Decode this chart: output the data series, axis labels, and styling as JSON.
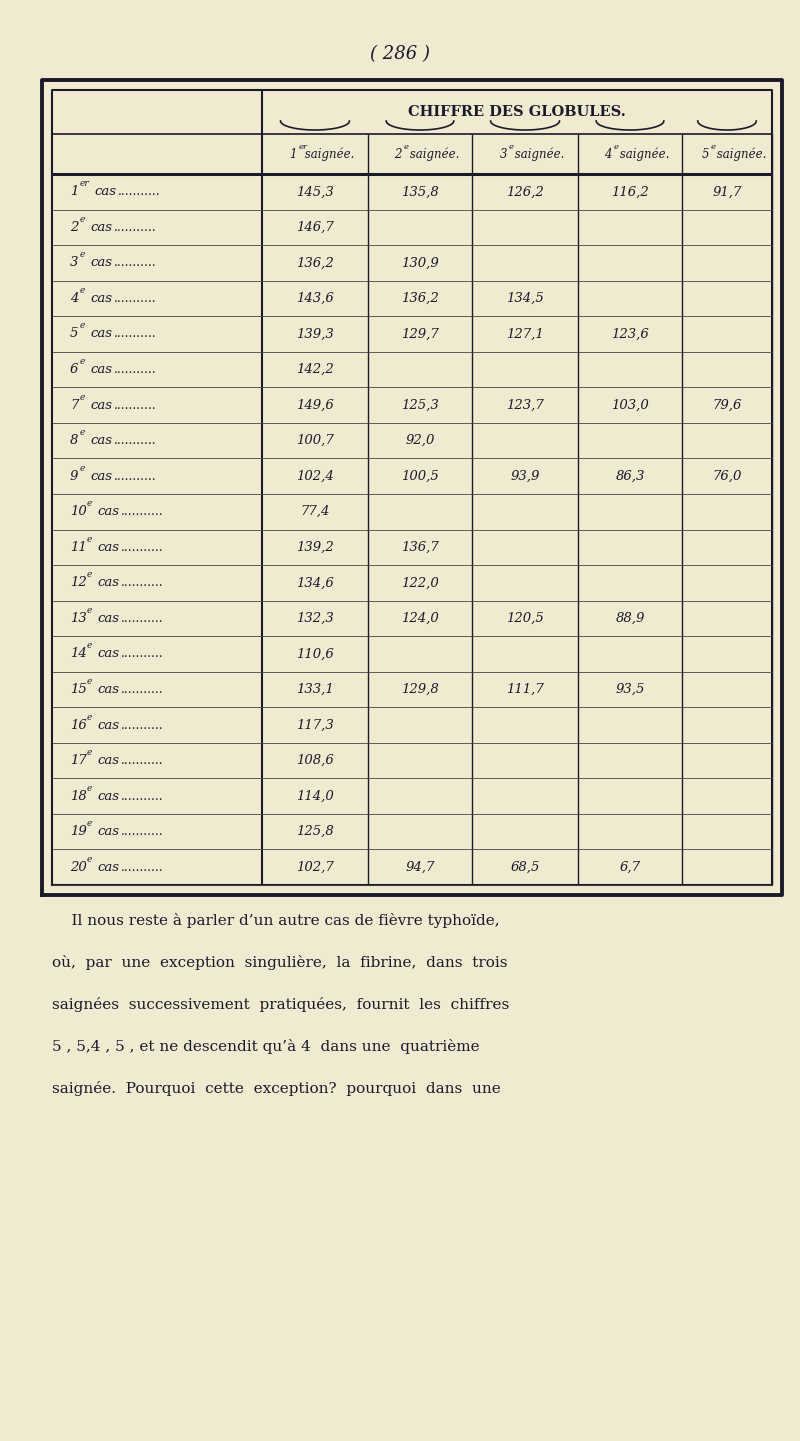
{
  "page_number": "( 286 )",
  "table_title": "CHIFFRE DES GLOBULES.",
  "col_headers_raw": [
    "1",
    "er",
    "2",
    "e",
    "3",
    "e",
    "4",
    "e",
    "5",
    "e"
  ],
  "col_headers_text": [
    "saignée.",
    "saignée.",
    "saignée.",
    "saignée.",
    "saignée."
  ],
  "col_headers_num": [
    "1",
    "2",
    "3",
    "4",
    "5"
  ],
  "col_headers_sup": [
    "er",
    "e",
    "e",
    "e",
    "e"
  ],
  "row_nums": [
    "1",
    "2",
    "3",
    "4",
    "5",
    "6",
    "7",
    "8",
    "9",
    "10",
    "11",
    "12",
    "13",
    "14",
    "15",
    "16",
    "17",
    "18",
    "19",
    "20"
  ],
  "row_sups": [
    "er",
    "e",
    "e",
    "e",
    "e",
    "e",
    "e",
    "e",
    "e",
    "e",
    "e",
    "e",
    "e",
    "e",
    "e",
    "e",
    "e",
    "e",
    "e",
    "e"
  ],
  "data": [
    [
      "145,3",
      "135,8",
      "126,2",
      "116,2",
      "91,7"
    ],
    [
      "146,7",
      "",
      "",
      "",
      ""
    ],
    [
      "136,2",
      "130,9",
      "",
      "",
      ""
    ],
    [
      "143,6",
      "136,2",
      "134,5",
      "",
      ""
    ],
    [
      "139,3",
      "129,7",
      "127,1",
      "123,6",
      ""
    ],
    [
      "142,2",
      "",
      "",
      "",
      ""
    ],
    [
      "149,6",
      "125,3",
      "123,7",
      "103,0",
      "79,6"
    ],
    [
      "100,7",
      "92,0",
      "",
      "",
      ""
    ],
    [
      "102,4",
      "100,5",
      "93,9",
      "86,3",
      "76,0"
    ],
    [
      "77,4",
      "",
      "",
      "",
      ""
    ],
    [
      "139,2",
      "136,7",
      "",
      "",
      ""
    ],
    [
      "134,6",
      "122,0",
      "",
      "",
      ""
    ],
    [
      "132,3",
      "124,0",
      "120,5",
      "88,9",
      ""
    ],
    [
      "110,6",
      "",
      "",
      "",
      ""
    ],
    [
      "133,1",
      "129,8",
      "111,7",
      "93,5",
      ""
    ],
    [
      "117,3",
      "",
      "",
      "",
      ""
    ],
    [
      "108,6",
      "",
      "",
      "",
      ""
    ],
    [
      "114,0",
      "",
      "",
      "",
      ""
    ],
    [
      "125,8",
      "",
      "",
      "",
      ""
    ],
    [
      "102,7",
      "94,7",
      "68,5",
      "6,7",
      ""
    ]
  ],
  "footer_lines": [
    "    Il nous reste à parler d’un autre cas de fièvre typhoïde,",
    "où,  par  une  exception  singulière,  la  fibrine,  dans  trois",
    "saignées  successivement  pratiquées,  fournit  les  chiffres",
    "5 , 5,4 , 5 , et ne descendit qu’à 4  dans une  quatrième",
    "saignée.  Pourquoi  cette  exception?  pourquoi  dans  une"
  ],
  "bg_color": "#f0ebd0",
  "text_color": "#1a1a2a",
  "border_color": "#1a1a2a"
}
